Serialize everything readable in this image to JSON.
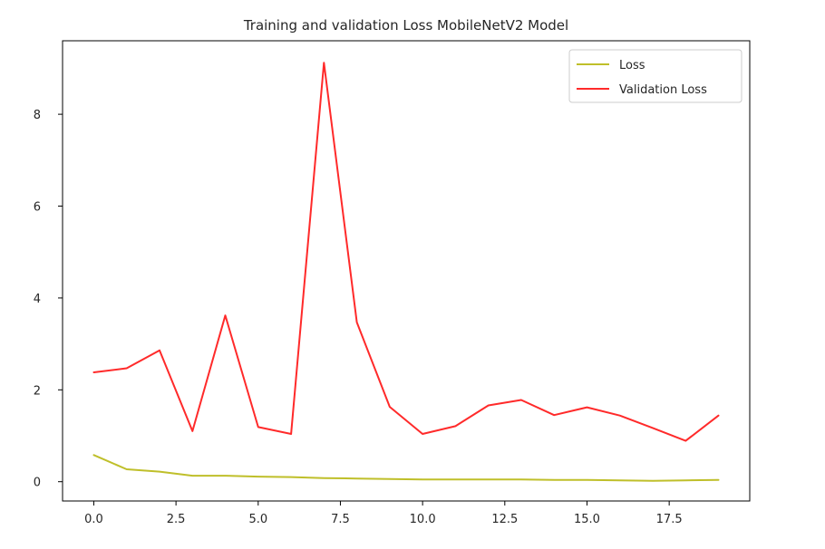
{
  "chart_data": {
    "type": "line",
    "title": "Training and validation Loss MobileNetV2 Model",
    "xlabel": "",
    "ylabel": "",
    "xlim": [
      -0.95,
      19.95
    ],
    "ylim": [
      -0.42,
      9.6
    ],
    "xticks": [
      0,
      2.5,
      5,
      7.5,
      10,
      12.5,
      15,
      17.5
    ],
    "xtick_labels": [
      "0.0",
      "2.5",
      "5.0",
      "7.5",
      "10.0",
      "12.5",
      "15.0",
      "17.5"
    ],
    "yticks": [
      0,
      2,
      4,
      6,
      8
    ],
    "ytick_labels": [
      "0",
      "2",
      "4",
      "6",
      "8"
    ],
    "legend_position": "top-right",
    "x": [
      0,
      1,
      2,
      3,
      4,
      5,
      6,
      7,
      8,
      9,
      10,
      11,
      12,
      13,
      14,
      15,
      16,
      17,
      18,
      19
    ],
    "series": [
      {
        "name": "Loss",
        "color": "#bfbf2a",
        "values": [
          0.58,
          0.27,
          0.22,
          0.13,
          0.13,
          0.11,
          0.1,
          0.08,
          0.07,
          0.06,
          0.05,
          0.05,
          0.05,
          0.05,
          0.04,
          0.04,
          0.03,
          0.02,
          0.03,
          0.04
        ]
      },
      {
        "name": "Validation Loss",
        "color": "#ff2a2a",
        "values": [
          2.38,
          2.47,
          2.86,
          1.1,
          3.62,
          1.19,
          1.04,
          9.12,
          3.47,
          1.63,
          1.04,
          1.21,
          1.66,
          1.78,
          1.45,
          1.62,
          1.44,
          1.17,
          0.89,
          1.44
        ]
      }
    ]
  }
}
